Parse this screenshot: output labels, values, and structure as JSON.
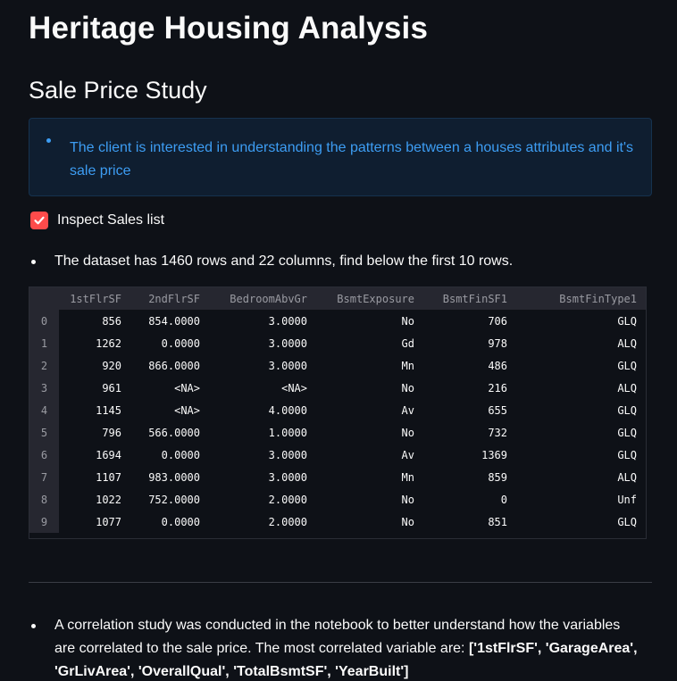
{
  "page": {
    "title": "Heritage Housing Analysis",
    "section_title": "Sale Price Study"
  },
  "info": {
    "text": "The client is interested in understanding the patterns between a houses attributes and it's sale price"
  },
  "checkbox": {
    "label": "Inspect Sales list",
    "checked": true,
    "color": "#ff4b4b"
  },
  "dataset_note": "The dataset has 1460 rows and 22 columns, find below the first 10 rows.",
  "table": {
    "columns": [
      "",
      "1stFlrSF",
      "2ndFlrSF",
      "BedroomAbvGr",
      "BsmtExposure",
      "BsmtFinSF1",
      "BsmtFinType1"
    ],
    "rows": [
      [
        "0",
        "856",
        "854.0000",
        "3.0000",
        "No",
        "706",
        "GLQ"
      ],
      [
        "1",
        "1262",
        "0.0000",
        "3.0000",
        "Gd",
        "978",
        "ALQ"
      ],
      [
        "2",
        "920",
        "866.0000",
        "3.0000",
        "Mn",
        "486",
        "GLQ"
      ],
      [
        "3",
        "961",
        "<NA>",
        "<NA>",
        "No",
        "216",
        "ALQ"
      ],
      [
        "4",
        "1145",
        "<NA>",
        "4.0000",
        "Av",
        "655",
        "GLQ"
      ],
      [
        "5",
        "796",
        "566.0000",
        "1.0000",
        "No",
        "732",
        "GLQ"
      ],
      [
        "6",
        "1694",
        "0.0000",
        "3.0000",
        "Av",
        "1369",
        "GLQ"
      ],
      [
        "7",
        "1107",
        "983.0000",
        "3.0000",
        "Mn",
        "859",
        "ALQ"
      ],
      [
        "8",
        "1022",
        "752.0000",
        "2.0000",
        "No",
        "0",
        "Unf"
      ],
      [
        "9",
        "1077",
        "0.0000",
        "2.0000",
        "No",
        "851",
        "GLQ"
      ]
    ]
  },
  "correlation": {
    "line1": "A correlation study was conducted in the notebook to better understand how the variables",
    "line2_prefix": "are correlated to the sale price. The most correlated variable are: ",
    "line2_bold": "['1stFlrSF', 'GarageArea',",
    "line3_bold": "'GrLivArea', 'OverallQual', 'TotalBsmtSF', 'YearBuilt']"
  }
}
